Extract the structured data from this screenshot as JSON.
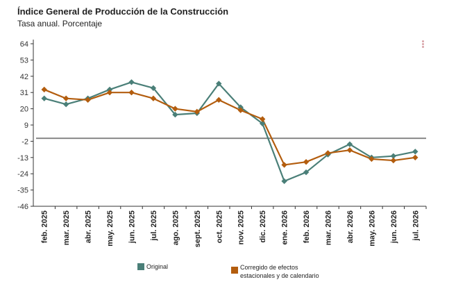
{
  "chart_data": {
    "type": "line",
    "title": "Índice General de Producción de la Construcción",
    "subtitle": "Tasa anual. Porcentaje",
    "categories": [
      "feb. 2025",
      "mar. 2025",
      "abr. 2025",
      "may. 2025",
      "jun. 2025",
      "jul. 2025",
      "ago. 2025",
      "sept. 2025",
      "oct. 2025",
      "nov. 2025",
      "dic. 2025",
      "ene. 2026",
      "feb. 2026",
      "mar. 2026",
      "abr. 2026",
      "may. 2026",
      "jun. 2026",
      "jul. 2026"
    ],
    "yticks": [
      64,
      53,
      42,
      31,
      20,
      9,
      -2,
      -13,
      -24,
      -35,
      -46
    ],
    "ylim": [
      -46,
      64
    ],
    "reference_line": 0,
    "series": [
      {
        "name": "Original",
        "color": "#4a7f78",
        "values": [
          27,
          23,
          27,
          33,
          38,
          34,
          16,
          17,
          37,
          21,
          10,
          -29,
          -23,
          -11,
          -4,
          -13,
          -12,
          -9
        ]
      },
      {
        "name": "Corregido de efectos estacionales y de calendario",
        "color": "#b35d0e",
        "values": [
          33,
          27,
          26,
          31,
          31,
          27,
          20,
          18,
          26,
          19,
          13,
          -18,
          -16,
          -10,
          -8,
          -14,
          -15,
          -13
        ]
      }
    ],
    "legend": [
      {
        "name": "Original",
        "color": "#4a7f78"
      },
      {
        "name": "Corregido de efectos estacionales y de calendario",
        "color": "#b35d0e"
      }
    ],
    "grid": false,
    "legend_position": "bottom"
  }
}
